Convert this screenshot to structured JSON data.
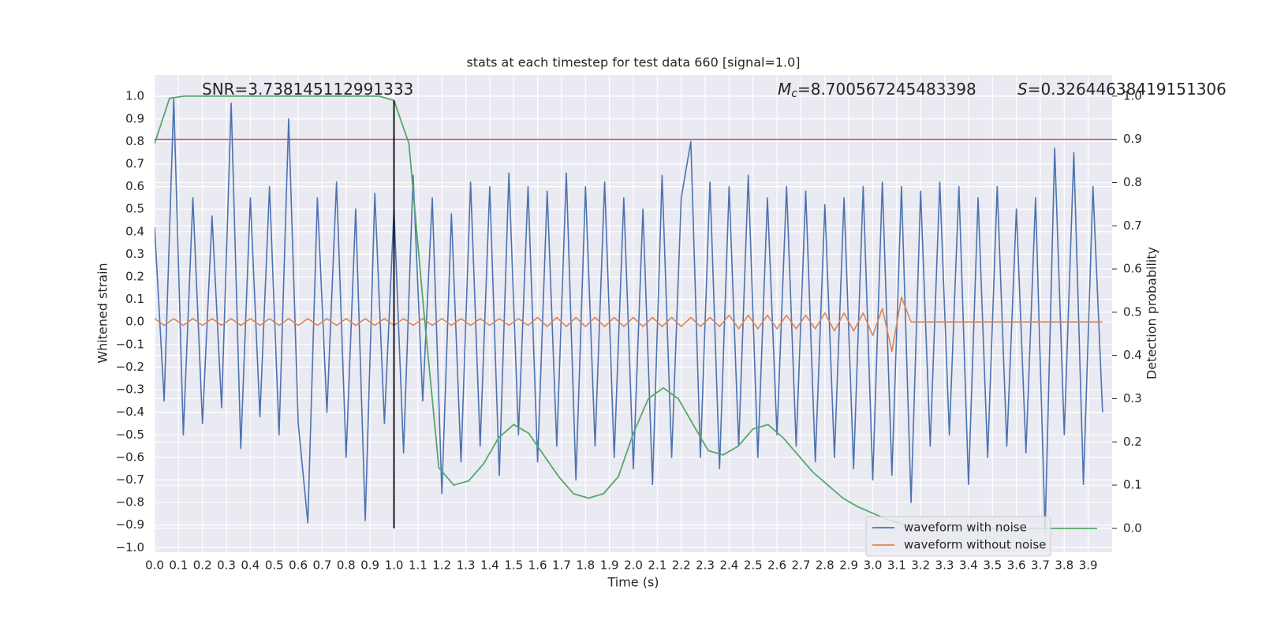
{
  "chart_data": {
    "type": "line",
    "title": "stats at each timestep for test data 660 [signal=1.0]",
    "x_label": "Time (s)",
    "y_label": "Whitened strain",
    "y2_label": "Detection probability",
    "xlim": [
      0,
      4.0
    ],
    "ylim": [
      -1.02,
      1.095
    ],
    "y2lim": [
      -0.055,
      1.049
    ],
    "grid": true,
    "legend": "lower right",
    "xticks": [
      {
        "value": 0,
        "label": "0.0"
      },
      {
        "value": 0.1,
        "label": "0.1"
      },
      {
        "value": 0.2,
        "label": "0.2"
      },
      {
        "value": 0.3,
        "label": "0.3"
      },
      {
        "value": 0.4,
        "label": "0.4"
      },
      {
        "value": 0.5,
        "label": "0.5"
      },
      {
        "value": 0.6,
        "label": "0.6"
      },
      {
        "value": 0.7,
        "label": "0.7"
      },
      {
        "value": 0.8,
        "label": "0.8"
      },
      {
        "value": 0.9,
        "label": "0.9"
      },
      {
        "value": 1,
        "label": "1.0"
      },
      {
        "value": 1.1,
        "label": "1.1"
      },
      {
        "value": 1.2,
        "label": "1.2"
      },
      {
        "value": 1.3,
        "label": "1.3"
      },
      {
        "value": 1.4,
        "label": "1.4"
      },
      {
        "value": 1.5,
        "label": "1.5"
      },
      {
        "value": 1.6,
        "label": "1.6"
      },
      {
        "value": 1.7,
        "label": "1.7"
      },
      {
        "value": 1.8,
        "label": "1.8"
      },
      {
        "value": 1.9,
        "label": "1.9"
      },
      {
        "value": 2,
        "label": "2.0"
      },
      {
        "value": 2.1,
        "label": "2.1"
      },
      {
        "value": 2.2,
        "label": "2.2"
      },
      {
        "value": 2.3,
        "label": "2.3"
      },
      {
        "value": 2.4,
        "label": "2.4"
      },
      {
        "value": 2.5,
        "label": "2.5"
      },
      {
        "value": 2.6,
        "label": "2.6"
      },
      {
        "value": 2.7,
        "label": "2.7"
      },
      {
        "value": 2.8,
        "label": "2.8"
      },
      {
        "value": 2.9,
        "label": "2.9"
      },
      {
        "value": 3,
        "label": "3.0"
      },
      {
        "value": 3.1,
        "label": "3.1"
      },
      {
        "value": 3.2,
        "label": "3.2"
      },
      {
        "value": 3.3,
        "label": "3.3"
      },
      {
        "value": 3.4,
        "label": "3.4"
      },
      {
        "value": 3.5,
        "label": "3.5"
      },
      {
        "value": 3.6,
        "label": "3.6"
      },
      {
        "value": 3.7,
        "label": "3.7"
      },
      {
        "value": 3.8,
        "label": "3.8"
      },
      {
        "value": 3.9,
        "label": "3.9"
      }
    ],
    "yticks": [
      {
        "value": -1,
        "label": "−1.0"
      },
      {
        "value": -0.9,
        "label": "−0.9"
      },
      {
        "value": -0.8,
        "label": "−0.8"
      },
      {
        "value": -0.7,
        "label": "−0.7"
      },
      {
        "value": -0.6,
        "label": "−0.6"
      },
      {
        "value": -0.5,
        "label": "−0.5"
      },
      {
        "value": -0.4,
        "label": "−0.4"
      },
      {
        "value": -0.3,
        "label": "−0.3"
      },
      {
        "value": -0.2,
        "label": "−0.2"
      },
      {
        "value": -0.1,
        "label": "−0.1"
      },
      {
        "value": 0,
        "label": "0.0"
      },
      0.1,
      0.2,
      0.3,
      0.4,
      0.5,
      0.6,
      0.7,
      0.8,
      0.9,
      {
        "value": 1,
        "label": "1.0"
      }
    ],
    "y2ticks": [
      {
        "value": 0,
        "label": "0.0"
      },
      0.1,
      0.2,
      0.3,
      0.4,
      0.5,
      0.6,
      0.7,
      0.8,
      0.9,
      {
        "value": 1,
        "label": "1.0"
      }
    ],
    "x": [
      0,
      0.04,
      0.08,
      0.12,
      0.16,
      0.2,
      0.24,
      0.28,
      0.32,
      0.36,
      0.4,
      0.44,
      0.48,
      0.52,
      0.56,
      0.6,
      0.64,
      0.68,
      0.72,
      0.76,
      0.8,
      0.84,
      0.88,
      0.92,
      0.96,
      1.0,
      1.04,
      1.08,
      1.12,
      1.16,
      1.2,
      1.24,
      1.28,
      1.32,
      1.36,
      1.4,
      1.44,
      1.48,
      1.52,
      1.56,
      1.6,
      1.64,
      1.68,
      1.72,
      1.76,
      1.8,
      1.84,
      1.88,
      1.92,
      1.96,
      2.0,
      2.04,
      2.08,
      2.12,
      2.16,
      2.2,
      2.24,
      2.28,
      2.32,
      2.36,
      2.4,
      2.44,
      2.48,
      2.52,
      2.56,
      2.6,
      2.64,
      2.68,
      2.72,
      2.76,
      2.8,
      2.84,
      2.88,
      2.92,
      2.96,
      3.0,
      3.04,
      3.08,
      3.12,
      3.16,
      3.2,
      3.24,
      3.28,
      3.32,
      3.36,
      3.4,
      3.44,
      3.48,
      3.52,
      3.56,
      3.6,
      3.64,
      3.68,
      3.72,
      3.76,
      3.8,
      3.84,
      3.88,
      3.92,
      3.96
    ],
    "series": [
      {
        "name": "waveform with noise",
        "color": "#4c72b0",
        "values": [
          0.42,
          -0.35,
          0.99,
          -0.5,
          0.55,
          -0.45,
          0.47,
          -0.38,
          0.97,
          -0.56,
          0.55,
          -0.42,
          0.6,
          -0.5,
          0.9,
          -0.45,
          -0.89,
          0.55,
          -0.4,
          0.62,
          -0.6,
          0.5,
          -0.88,
          0.57,
          -0.45,
          0.5,
          -0.58,
          0.65,
          -0.35,
          0.55,
          -0.76,
          0.48,
          -0.62,
          0.62,
          -0.55,
          0.6,
          -0.68,
          0.66,
          -0.5,
          0.6,
          -0.62,
          0.58,
          -0.55,
          0.66,
          -0.7,
          0.6,
          -0.55,
          0.62,
          -0.6,
          0.55,
          -0.65,
          0.5,
          -0.72,
          0.65,
          -0.6,
          0.55,
          0.8,
          -0.6,
          0.62,
          -0.65,
          0.6,
          -0.55,
          0.65,
          -0.6,
          0.55,
          -0.5,
          0.6,
          -0.55,
          0.58,
          -0.62,
          0.52,
          -0.6,
          0.55,
          -0.65,
          0.6,
          -0.7,
          0.62,
          -0.68,
          0.6,
          -0.8,
          0.58,
          -0.55,
          0.62,
          -0.5,
          0.6,
          -0.72,
          0.55,
          -0.6,
          0.6,
          -0.55,
          0.5,
          -0.58,
          0.55,
          -0.93,
          0.77,
          -0.5,
          0.75,
          -0.72,
          0.6,
          -0.4
        ]
      },
      {
        "name": "waveform without noise",
        "color": "#dd8452",
        "values": [
          0.015,
          -0.015,
          0.015,
          -0.015,
          0.015,
          -0.015,
          0.015,
          -0.015,
          0.015,
          -0.015,
          0.015,
          -0.015,
          0.015,
          -0.015,
          0.015,
          -0.015,
          0.015,
          -0.015,
          0.015,
          -0.015,
          0.015,
          -0.015,
          0.015,
          -0.015,
          0.015,
          -0.015,
          0.015,
          -0.015,
          0.015,
          -0.015,
          0.015,
          -0.015,
          0.015,
          -0.015,
          0.015,
          -0.015,
          0.015,
          -0.015,
          0.015,
          -0.015,
          0.02,
          -0.02,
          0.02,
          -0.02,
          0.02,
          -0.02,
          0.02,
          -0.02,
          0.02,
          -0.02,
          0.02,
          -0.02,
          0.02,
          -0.02,
          0.02,
          -0.02,
          0.02,
          -0.02,
          0.02,
          -0.02,
          0.03,
          -0.03,
          0.03,
          -0.03,
          0.03,
          -0.03,
          0.03,
          -0.03,
          0.03,
          -0.03,
          0.04,
          -0.04,
          0.04,
          -0.04,
          0.04,
          -0.06,
          0.06,
          -0.13,
          0.11,
          0,
          0,
          0,
          0,
          0,
          0,
          0,
          0,
          0,
          0,
          0,
          0,
          0,
          0,
          0,
          0,
          0,
          0,
          0,
          0,
          0
        ]
      },
      {
        "color": "#55a868",
        "axis": "y2",
        "x": [
          0,
          0.0625,
          0.125,
          0.1875,
          0.25,
          0.3125,
          0.375,
          0.4375,
          0.5,
          0.5625,
          0.625,
          0.6875,
          0.75,
          0.8125,
          0.875,
          0.9375,
          1.0,
          1.0625,
          1.125,
          1.1875,
          1.25,
          1.3125,
          1.375,
          1.4375,
          1.5,
          1.5625,
          1.625,
          1.6875,
          1.75,
          1.8125,
          1.875,
          1.9375,
          2.0,
          2.0625,
          2.125,
          2.1875,
          2.25,
          2.3125,
          2.375,
          2.4375,
          2.5,
          2.5625,
          2.625,
          2.6875,
          2.75,
          2.8125,
          2.875,
          2.9375,
          3.0,
          3.0625,
          3.125,
          3.1875,
          3.25,
          3.3125,
          3.375,
          3.4375,
          3.5,
          3.5625,
          3.625,
          3.6875,
          3.75,
          3.8125,
          3.875,
          3.9375
        ],
        "values": [
          0.89,
          0.995,
          1.0,
          1.0,
          1.0,
          1.0,
          1.0,
          1.0,
          1.0,
          1.0,
          1.0,
          1.0,
          1.0,
          1.0,
          1.0,
          1.0,
          0.99,
          0.89,
          0.5,
          0.14,
          0.1,
          0.11,
          0.15,
          0.21,
          0.24,
          0.22,
          0.17,
          0.12,
          0.08,
          0.07,
          0.08,
          0.12,
          0.22,
          0.3,
          0.325,
          0.3,
          0.24,
          0.18,
          0.17,
          0.19,
          0.23,
          0.24,
          0.21,
          0.17,
          0.13,
          0.1,
          0.07,
          0.05,
          0.035,
          0.02,
          0.01,
          0.005,
          0.002,
          0,
          0,
          0,
          0,
          0,
          0,
          0,
          0,
          0,
          0,
          0
        ]
      }
    ],
    "threshold": {
      "value": 0.9,
      "axis": "y2",
      "color": "#c44e52"
    },
    "vline": {
      "x": 1.0,
      "y2": [
        0,
        0.99
      ],
      "color": "#000000"
    },
    "annotations": [
      {
        "text": "SNR=3.738145112991333"
      },
      {
        "symbol": "M",
        "subscript": "c",
        "text": "=8.700567245483398"
      },
      {
        "symbol": "S",
        "text": "=0.32644638419151306"
      }
    ]
  }
}
